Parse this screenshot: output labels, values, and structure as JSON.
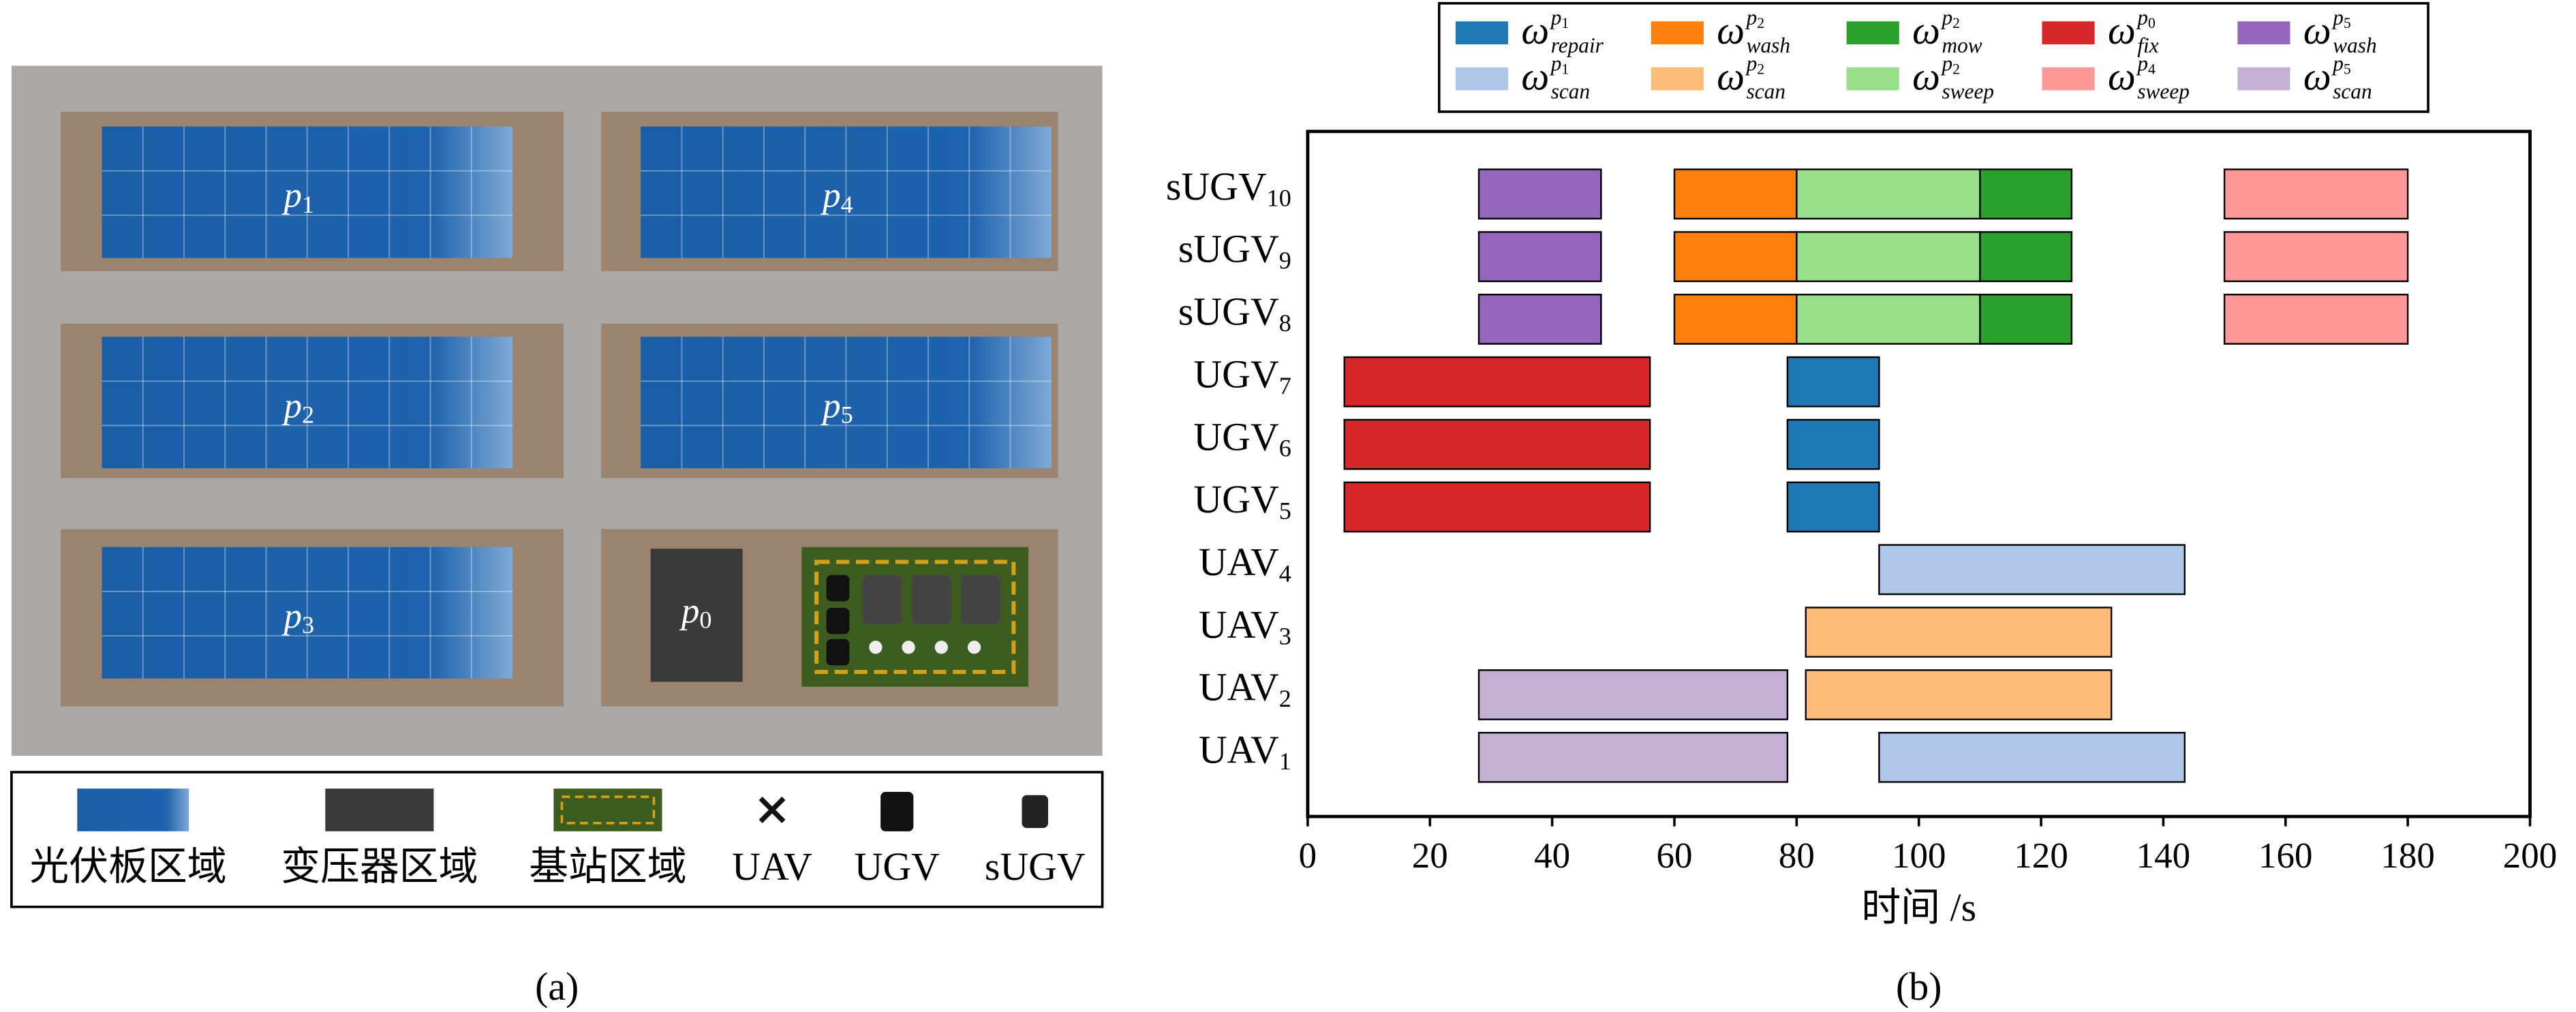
{
  "panel_a": {
    "plots": [
      {
        "text": "p",
        "sub": "1"
      },
      {
        "text": "p",
        "sub": "2"
      },
      {
        "text": "p",
        "sub": "3"
      },
      {
        "text": "p",
        "sub": "4"
      },
      {
        "text": "p",
        "sub": "5"
      },
      {
        "text": "p",
        "sub": "0"
      }
    ],
    "legend": [
      "光伏板区域",
      "变压器区域",
      "基站区域",
      "UAV",
      "UGV",
      "sUGV"
    ],
    "caption": "(a)"
  },
  "chart_data": {
    "type": "gantt",
    "caption": "(b)",
    "xlabel": "时间 /s",
    "xlim": [
      0,
      200
    ],
    "xticks": [
      0,
      20,
      40,
      60,
      80,
      100,
      120,
      140,
      160,
      180,
      200
    ],
    "legend": "top",
    "legend_ncol": 5,
    "categories": [
      {
        "text": "UAV",
        "sub": "1"
      },
      {
        "text": "UAV",
        "sub": "2"
      },
      {
        "text": "UAV",
        "sub": "3"
      },
      {
        "text": "UAV",
        "sub": "4"
      },
      {
        "text": "UGV",
        "sub": "5"
      },
      {
        "text": "UGV",
        "sub": "6"
      },
      {
        "text": "UGV",
        "sub": "7"
      },
      {
        "text": "sUGV",
        "sub": "8"
      },
      {
        "text": "sUGV",
        "sub": "9"
      },
      {
        "text": "sUGV",
        "sub": "10"
      }
    ],
    "series": [
      {
        "name": {
          "base": "ω",
          "sup": "p",
          "sup_sub": "1",
          "sub": "repair"
        },
        "color": "#1f77b4",
        "rows": [
          4,
          5,
          6
        ],
        "starts": [
          78.5,
          78.5,
          78.5
        ],
        "ends": [
          93.5,
          93.5,
          93.5
        ]
      },
      {
        "name": {
          "base": "ω",
          "sup": "p",
          "sup_sub": "2",
          "sub": "wash"
        },
        "color": "#ff7f0e",
        "rows": [
          7,
          8,
          9
        ],
        "starts": [
          60,
          60,
          60
        ],
        "ends": [
          80,
          80,
          80
        ]
      },
      {
        "name": {
          "base": "ω",
          "sup": "p",
          "sup_sub": "2",
          "sub": "mow"
        },
        "color": "#2ca02c",
        "rows": [
          7,
          8,
          9
        ],
        "starts": [
          110,
          110,
          110
        ],
        "ends": [
          125,
          125,
          125
        ]
      },
      {
        "name": {
          "base": "ω",
          "sup": "p",
          "sup_sub": "0",
          "sub": "fix"
        },
        "color": "#d62728",
        "rows": [
          4,
          5,
          6
        ],
        "starts": [
          6,
          6,
          6
        ],
        "ends": [
          56,
          56,
          56
        ]
      },
      {
        "name": {
          "base": "ω",
          "sup": "p",
          "sup_sub": "5",
          "sub": "wash"
        },
        "color": "#9467bd",
        "rows": [
          7,
          8,
          9
        ],
        "starts": [
          28,
          28,
          28
        ],
        "ends": [
          48,
          48,
          48
        ]
      },
      {
        "name": {
          "base": "ω",
          "sup": "p",
          "sup_sub": "1",
          "sub": "scan"
        },
        "color": "#aec7e8",
        "rows": [
          0,
          3
        ],
        "starts": [
          93.5,
          93.5
        ],
        "ends": [
          143.5,
          143.5
        ]
      },
      {
        "name": {
          "base": "ω",
          "sup": "p",
          "sup_sub": "2",
          "sub": "scan"
        },
        "color": "#ffbb78",
        "rows": [
          1,
          2
        ],
        "starts": [
          81.5,
          81.5
        ],
        "ends": [
          131.5,
          131.5
        ]
      },
      {
        "name": {
          "base": "ω",
          "sup": "p",
          "sup_sub": "2",
          "sub": "sweep"
        },
        "color": "#98df8a",
        "rows": [
          7,
          8,
          9
        ],
        "starts": [
          80,
          80,
          80
        ],
        "ends": [
          110,
          110,
          110
        ]
      },
      {
        "name": {
          "base": "ω",
          "sup": "p",
          "sup_sub": "4",
          "sub": "sweep"
        },
        "color": "#ff9896",
        "rows": [
          7,
          8,
          9
        ],
        "starts": [
          150,
          150,
          150
        ],
        "ends": [
          180,
          180,
          180
        ]
      },
      {
        "name": {
          "base": "ω",
          "sup": "p",
          "sup_sub": "5",
          "sub": "scan"
        },
        "color": "#c5b0d5",
        "rows": [
          0,
          1
        ],
        "starts": [
          28,
          28
        ],
        "ends": [
          78.5,
          78.5
        ]
      }
    ]
  }
}
